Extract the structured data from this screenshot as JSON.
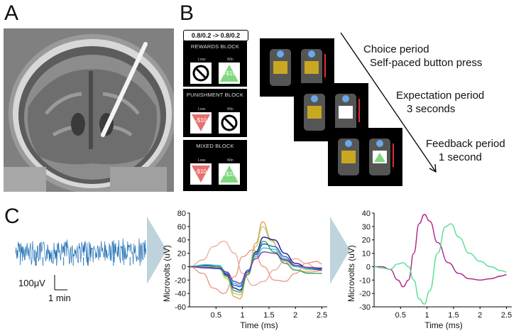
{
  "panels": {
    "a": "A",
    "b": "B",
    "c": "C"
  },
  "task": {
    "ratio": "0.8/0.2 -> 0.8/0.2",
    "blocks": [
      {
        "name": "REWARDS BLOCK",
        "loss_label": "Loss",
        "win_label": "Win",
        "loss_value": "",
        "win_value": "+$10"
      },
      {
        "name": "PUNISHMENT BLOCK",
        "loss_label": "Loss",
        "win_label": "Win",
        "loss_value": "-$10",
        "win_value": ""
      },
      {
        "name": "MIXED BLOCK",
        "loss_label": "Loss",
        "win_label": "Win",
        "loss_value": "-$10",
        "win_value": "+$10"
      }
    ],
    "periods": [
      {
        "title": "Choice period",
        "detail": "Self-paced button press"
      },
      {
        "title": "Expectation period",
        "detail": "3 seconds"
      },
      {
        "title": "Feedback period",
        "detail": "1 second"
      }
    ]
  },
  "raw_trace": {
    "scale_v": "100μV",
    "scale_t": "1 min",
    "color": "#1f6fb5"
  },
  "chart_data": [
    {
      "type": "line",
      "xlabel": "Time (ms)",
      "ylabel": "Microvolts (uV)",
      "xlim": [
        0,
        2.6
      ],
      "ylim": [
        -60,
        80
      ],
      "xticks": [
        0.5,
        1,
        1.5,
        2,
        2.5
      ],
      "yticks": [
        -60,
        -40,
        -20,
        0,
        20,
        40,
        60,
        80
      ],
      "series": [
        {
          "color": "#e8a060",
          "x": [
            0,
            0.3,
            0.55,
            0.7,
            0.85,
            0.95,
            1.1,
            1.25,
            1.38,
            1.55,
            1.75,
            2.0,
            2.25,
            2.5
          ],
          "y": [
            0,
            2,
            0,
            -15,
            -45,
            -48,
            -10,
            35,
            67,
            40,
            10,
            -5,
            -8,
            -6
          ]
        },
        {
          "color": "#b8d470",
          "x": [
            0,
            0.3,
            0.55,
            0.7,
            0.85,
            0.95,
            1.1,
            1.25,
            1.38,
            1.55,
            1.75,
            2.0,
            2.25,
            2.5
          ],
          "y": [
            0,
            1,
            -2,
            -18,
            -40,
            -42,
            -8,
            30,
            60,
            38,
            12,
            0,
            -5,
            -4
          ]
        },
        {
          "color": "#e89a8a",
          "x": [
            0,
            0.25,
            0.45,
            0.65,
            0.85,
            1.0,
            1.2,
            1.4,
            1.6,
            1.8,
            2.0,
            2.2,
            2.4,
            2.5
          ],
          "y": [
            0,
            -10,
            -32,
            -40,
            -15,
            15,
            25,
            0,
            -20,
            -22,
            -10,
            5,
            8,
            4
          ]
        },
        {
          "color": "#e8b0a0",
          "x": [
            0,
            0.25,
            0.45,
            0.65,
            0.85,
            1.0,
            1.2,
            1.4,
            1.6,
            1.8,
            2.0,
            2.2,
            2.4,
            2.5
          ],
          "y": [
            0,
            10,
            30,
            38,
            20,
            -10,
            -28,
            -22,
            -5,
            8,
            12,
            5,
            -2,
            -3
          ]
        },
        {
          "color": "#1a1a8a",
          "x": [
            0,
            0.3,
            0.55,
            0.7,
            0.85,
            0.95,
            1.1,
            1.25,
            1.4,
            1.6,
            1.8,
            2.0,
            2.25,
            2.5
          ],
          "y": [
            0,
            2,
            0,
            -12,
            -32,
            -35,
            -12,
            22,
            44,
            40,
            20,
            5,
            -2,
            -3
          ]
        },
        {
          "color": "#2a5ad8",
          "x": [
            0,
            0.3,
            0.55,
            0.7,
            0.85,
            0.95,
            1.1,
            1.25,
            1.4,
            1.6,
            1.8,
            2.0,
            2.25,
            2.5
          ],
          "y": [
            0,
            -2,
            -3,
            -10,
            -28,
            -30,
            -8,
            18,
            34,
            30,
            15,
            2,
            -3,
            -5
          ]
        },
        {
          "color": "#30c0d8",
          "x": [
            0,
            0.3,
            0.55,
            0.7,
            0.85,
            0.95,
            1.1,
            1.25,
            1.4,
            1.6,
            1.8,
            2.0,
            2.25,
            2.5
          ],
          "y": [
            0,
            3,
            2,
            -8,
            -25,
            -28,
            -5,
            15,
            28,
            26,
            12,
            0,
            -2,
            -2
          ]
        },
        {
          "color": "#3aa060",
          "x": [
            0,
            0.3,
            0.55,
            0.7,
            0.85,
            0.95,
            1.1,
            1.25,
            1.4,
            1.6,
            1.8,
            2.0,
            2.25,
            2.5
          ],
          "y": [
            0,
            1,
            0,
            -14,
            -36,
            -38,
            -12,
            20,
            38,
            22,
            5,
            -5,
            -10,
            -10
          ]
        },
        {
          "color": "#8a30a0",
          "x": [
            0,
            0.3,
            0.55,
            0.7,
            0.85,
            0.95,
            1.1,
            1.25,
            1.4,
            1.6,
            1.8,
            2.0,
            2.25,
            2.5
          ],
          "y": [
            0,
            -1,
            -2,
            -8,
            -22,
            -25,
            -6,
            12,
            22,
            20,
            10,
            2,
            -1,
            -2
          ]
        }
      ]
    },
    {
      "type": "line",
      "xlabel": "Time (ms)",
      "ylabel": "Microvolts (uV)",
      "xlim": [
        0,
        2.6
      ],
      "ylim": [
        -30,
        40
      ],
      "xticks": [
        0.5,
        1,
        1.5,
        2,
        2.5
      ],
      "yticks": [
        -30,
        -20,
        -10,
        0,
        10,
        20,
        30,
        40
      ],
      "series": [
        {
          "color": "#b0208a",
          "x": [
            0,
            0.15,
            0.3,
            0.45,
            0.55,
            0.65,
            0.75,
            0.85,
            0.95,
            1.05,
            1.2,
            1.4,
            1.6,
            1.8,
            2.0,
            2.2,
            2.4,
            2.5
          ],
          "y": [
            0,
            0,
            -2,
            -10,
            -15,
            -10,
            10,
            32,
            39,
            34,
            18,
            3,
            -5,
            -9,
            -10,
            -9,
            -7,
            -6
          ]
        },
        {
          "color": "#50e090",
          "x": [
            0,
            0.15,
            0.3,
            0.45,
            0.55,
            0.65,
            0.75,
            0.85,
            0.95,
            1.05,
            1.2,
            1.35,
            1.45,
            1.6,
            1.8,
            2.0,
            2.2,
            2.4,
            2.5
          ],
          "y": [
            0,
            -1,
            -2,
            2,
            3,
            0,
            -10,
            -24,
            -28,
            -18,
            10,
            30,
            32,
            22,
            10,
            4,
            0,
            -3,
            -4
          ]
        }
      ]
    }
  ]
}
